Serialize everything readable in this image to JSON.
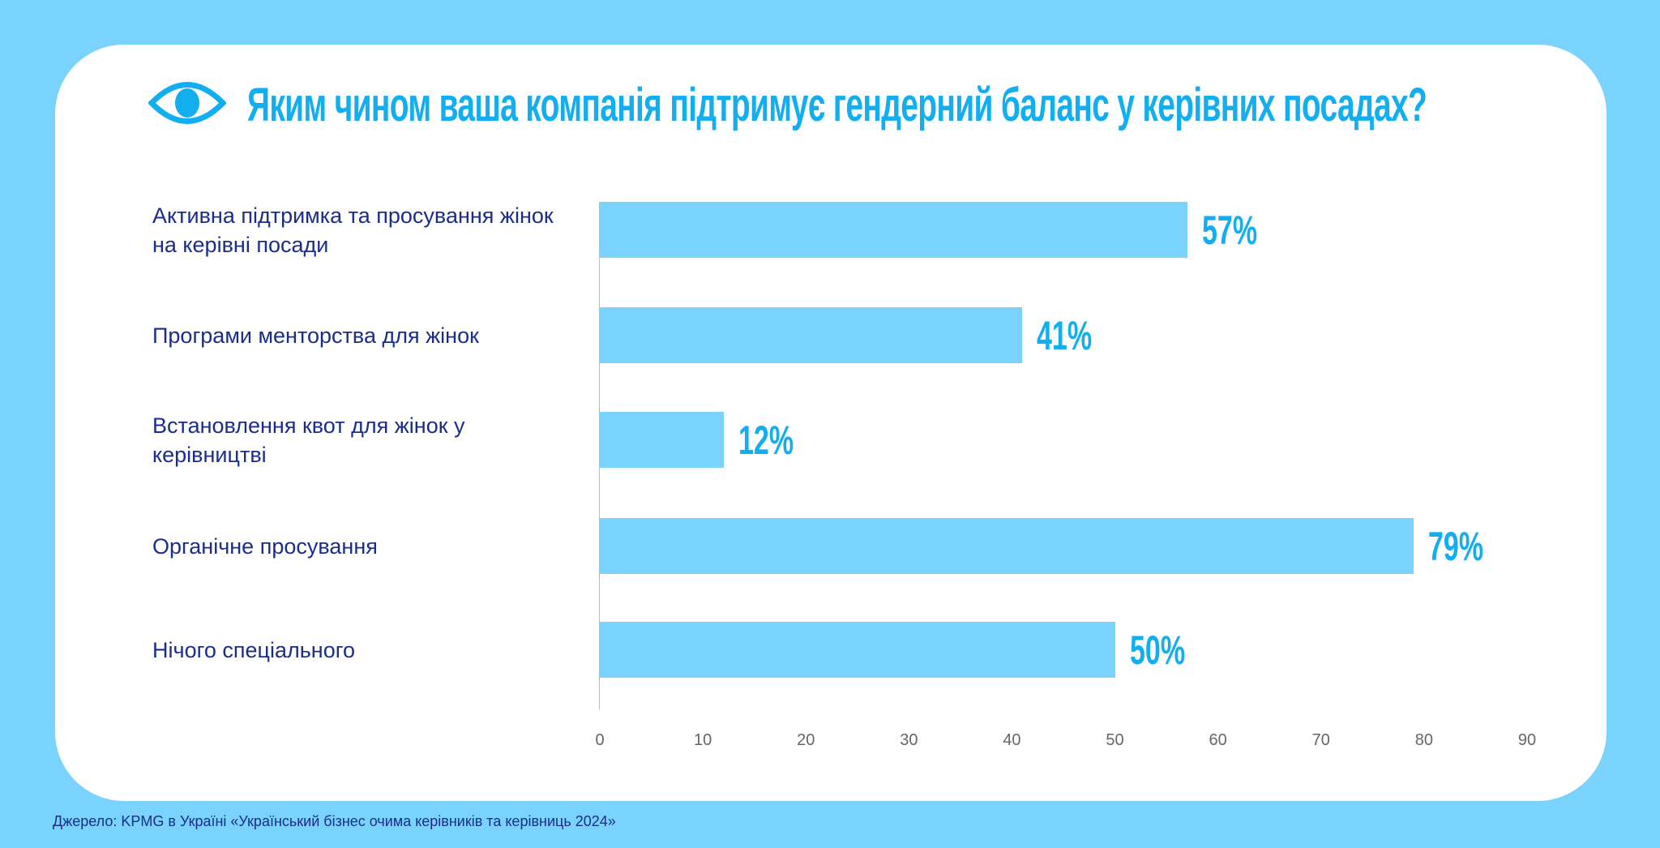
{
  "colors": {
    "background": "#79d3fd",
    "bar": "#79d3fd",
    "title": "#12aef0",
    "label": "#1a2d8c",
    "value": "#12aef0"
  },
  "icon": "eye-icon",
  "chart_data": {
    "type": "bar",
    "orientation": "horizontal",
    "title": "Яким чином ваша компанія підтримує гендерний баланс у керівних посадах?",
    "categories": [
      "Активна підтримка та просування жінок на керівні посади",
      "Програми менторства для жінок",
      "Встановлення квот для жінок у керівництві",
      "Органічне просування",
      "Нічого спеціального"
    ],
    "values": [
      57,
      41,
      12,
      79,
      50
    ],
    "value_labels": [
      "57%",
      "41%",
      "12%",
      "79%",
      "50%"
    ],
    "xlim": [
      0,
      90
    ],
    "xticks": [
      "0",
      "10",
      "20",
      "30",
      "40",
      "50",
      "60",
      "70",
      "80",
      "90"
    ],
    "grid": false,
    "xlabel": "",
    "ylabel": ""
  },
  "source": "Джерело: KPMG в Україні «Український бізнес очима керівників та керівниць 2024»"
}
